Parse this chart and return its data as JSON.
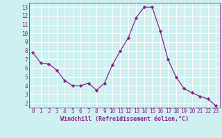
{
  "x": [
    0,
    1,
    2,
    3,
    4,
    5,
    6,
    7,
    8,
    9,
    10,
    11,
    12,
    13,
    14,
    15,
    16,
    17,
    18,
    19,
    20,
    21,
    22,
    23
  ],
  "y": [
    7.8,
    6.6,
    6.5,
    5.8,
    4.6,
    4.0,
    4.0,
    4.3,
    3.5,
    4.3,
    6.4,
    8.0,
    9.5,
    11.8,
    13.0,
    13.0,
    10.3,
    7.0,
    5.0,
    3.7,
    3.2,
    2.8,
    2.5,
    1.7
  ],
  "line_color": "#882288",
  "marker": "D",
  "marker_size": 2.2,
  "bg_color": "#cef0f0",
  "grid_color": "#ffffff",
  "xlabel": "Windchill (Refroidissement éolien,°C)",
  "xlabel_color": "#882288",
  "tick_color": "#882288",
  "ylim": [
    1.5,
    13.5
  ],
  "xlim": [
    -0.5,
    23.5
  ],
  "yticks": [
    2,
    3,
    4,
    5,
    6,
    7,
    8,
    9,
    10,
    11,
    12,
    13
  ],
  "xticks": [
    0,
    1,
    2,
    3,
    4,
    5,
    6,
    7,
    8,
    9,
    10,
    11,
    12,
    13,
    14,
    15,
    16,
    17,
    18,
    19,
    20,
    21,
    22,
    23
  ],
  "spine_color": "#882288",
  "tick_fontsize": 5.5,
  "xlabel_fontsize": 6.0
}
